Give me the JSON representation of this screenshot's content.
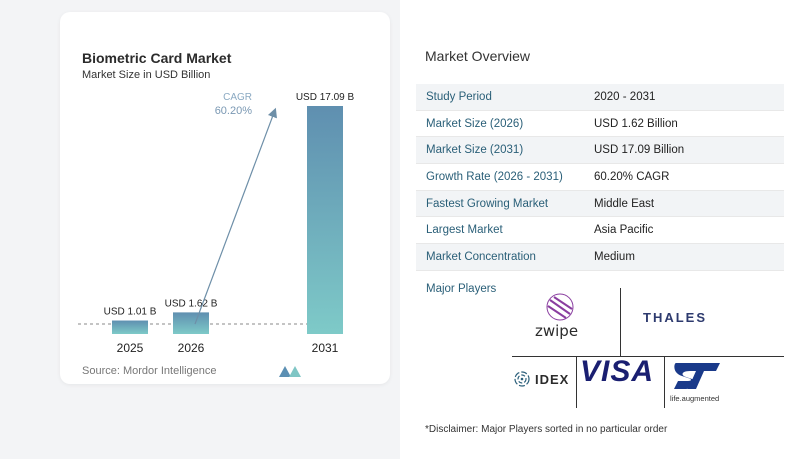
{
  "chart": {
    "title": "Biometric Card Market",
    "subtitle": "Market Size in USD Billion",
    "source": "Source: Mordor Intelligence"
  },
  "chart_data": {
    "type": "bar",
    "categories": [
      "2025",
      "2026",
      "2031"
    ],
    "values": [
      1.01,
      1.62,
      17.09
    ],
    "data_labels": [
      "USD 1.01 B",
      "USD 1.62 B",
      "USD 17.09 B"
    ],
    "cagr_label": "CAGR",
    "cagr_value": "60.20%",
    "ylim": [
      0,
      17.09
    ],
    "grid": false,
    "colors": {
      "bar_top": "#5f8fb0",
      "bar_bottom": "#7ecac8",
      "arrow": "#6e8fa8",
      "cagr": "#8aa9c2"
    }
  },
  "overview": {
    "title": "Market Overview",
    "rows": [
      {
        "label": "Study Period",
        "value": "2020 - 2031"
      },
      {
        "label": "Market Size (2026)",
        "value": "USD 1.62 Billion"
      },
      {
        "label": "Market Size (2031)",
        "value": "USD 17.09 Billion"
      },
      {
        "label": "Growth Rate (2026 - 2031)",
        "value": "60.20% CAGR"
      },
      {
        "label": "Fastest Growing Market",
        "value": "Middle East"
      },
      {
        "label": "Largest Market",
        "value": "Asia Pacific"
      },
      {
        "label": "Market Concentration",
        "value": "Medium"
      }
    ],
    "players_label": "Major Players",
    "players": {
      "zwipe": "zwipe",
      "thales": "THALES",
      "idex": "IDEX",
      "visa": "VISA",
      "st": "ST",
      "st_tagline": "life.augmented"
    },
    "disclaimer": "*Disclaimer: Major Players sorted in no particular order"
  }
}
